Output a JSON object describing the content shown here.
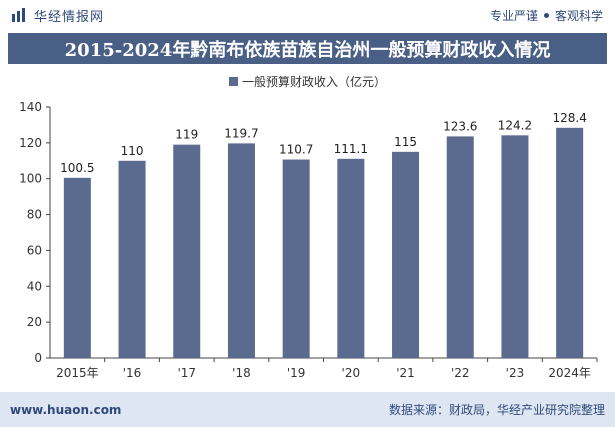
{
  "header": {
    "brand": "华经情报网",
    "tags": [
      "专业严谨",
      "客观科学"
    ]
  },
  "title": "2015-2024年黔南布依族苗族自治州一般预算财政收入情况",
  "footer": {
    "site": "www.huaon.com",
    "source": "数据来源：财政局，华经产业研究院整理"
  },
  "colors": {
    "bar": "#5a6b8f",
    "title_bg": "#4a5f86",
    "footer_bg": "#dde6f2",
    "brand": "#2f4a7a"
  },
  "chart_data": {
    "type": "bar",
    "categories": [
      "2015年",
      "'16",
      "'17",
      "'18",
      "'19",
      "'20",
      "'21",
      "'22",
      "'23",
      "2024年"
    ],
    "series": [
      {
        "name": "一般预算财政收入（亿元）",
        "values": [
          100.5,
          110,
          119,
          119.7,
          110.7,
          111.1,
          115,
          123.6,
          124.2,
          128.4
        ]
      }
    ],
    "data_labels": [
      "100.5",
      "110",
      "119",
      "119.7",
      "110.7",
      "111.1",
      "115",
      "123.6",
      "124.2",
      "128.4"
    ],
    "ylim": [
      0,
      140
    ],
    "yticks": [
      0,
      20,
      40,
      60,
      80,
      100,
      120,
      140
    ],
    "grid": false,
    "legend_position": "top-center"
  }
}
